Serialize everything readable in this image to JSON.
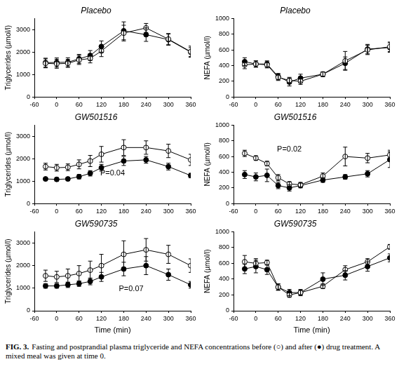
{
  "chart_data": [
    {
      "type": "line",
      "title": "Placebo",
      "ylabel": "Triglycerides (µmol/l)",
      "x": [
        -30,
        0,
        30,
        60,
        90,
        120,
        180,
        240,
        300,
        360
      ],
      "xlim": [
        -60,
        360
      ],
      "xticks": [
        -60,
        0,
        60,
        120,
        180,
        240,
        300,
        360
      ],
      "ylim": [
        0,
        3500
      ],
      "yticks": [
        0,
        1000,
        2000,
        3000
      ],
      "grid": false,
      "series": [
        {
          "name": "before",
          "color": "#000000",
          "marker": "circle_open",
          "values": [
            1500,
            1480,
            1500,
            1650,
            1720,
            2050,
            2850,
            3080,
            2580,
            2020
          ],
          "errors": [
            200,
            200,
            180,
            200,
            200,
            250,
            350,
            200,
            250,
            250
          ]
        },
        {
          "name": "after",
          "color": "#000000",
          "marker": "circle",
          "values": [
            1530,
            1540,
            1550,
            1700,
            1850,
            2250,
            2950,
            2780,
            2560,
            2000
          ],
          "errors": [
            200,
            200,
            200,
            200,
            220,
            250,
            400,
            300,
            250,
            200
          ]
        }
      ]
    },
    {
      "type": "line",
      "title": "Placebo",
      "ylabel": "NEFA (µmol/l)",
      "x": [
        -30,
        0,
        30,
        60,
        90,
        120,
        180,
        240,
        300,
        360
      ],
      "xlim": [
        -60,
        360
      ],
      "xticks": [
        -60,
        0,
        60,
        120,
        180,
        240,
        300,
        360
      ],
      "ylim": [
        0,
        1000
      ],
      "yticks": [
        0,
        200,
        400,
        600,
        800,
        1000
      ],
      "grid": false,
      "series": [
        {
          "name": "before",
          "color": "#000000",
          "marker": "circle_open",
          "values": [
            410,
            420,
            410,
            250,
            210,
            200,
            290,
            460,
            600,
            640
          ],
          "errors": [
            50,
            40,
            40,
            40,
            40,
            40,
            30,
            120,
            60,
            60
          ]
        },
        {
          "name": "after",
          "color": "#000000",
          "marker": "circle",
          "values": [
            450,
            420,
            420,
            260,
            190,
            240,
            290,
            430,
            610,
            630
          ],
          "errors": [
            50,
            40,
            40,
            40,
            50,
            50,
            30,
            80,
            60,
            60
          ]
        }
      ]
    },
    {
      "type": "line",
      "title": "GW501516",
      "ylabel": "Triglycerides (µmol/l)",
      "x": [
        -30,
        0,
        30,
        60,
        90,
        120,
        180,
        240,
        300,
        360
      ],
      "xlim": [
        -60,
        360
      ],
      "xticks": [
        -60,
        0,
        60,
        120,
        180,
        240,
        300,
        360
      ],
      "ylim": [
        0,
        3500
      ],
      "yticks": [
        0,
        1000,
        2000,
        3000
      ],
      "grid": false,
      "annotation": {
        "text": "P=0.04",
        "x": 150,
        "y": 1350
      },
      "series": [
        {
          "name": "before",
          "color": "#000000",
          "marker": "circle_open",
          "values": [
            1650,
            1600,
            1620,
            1750,
            1900,
            2200,
            2500,
            2500,
            2350,
            1950
          ],
          "errors": [
            150,
            150,
            150,
            200,
            250,
            350,
            350,
            300,
            300,
            250
          ]
        },
        {
          "name": "after",
          "color": "#000000",
          "marker": "circle",
          "values": [
            1100,
            1080,
            1100,
            1200,
            1350,
            1600,
            1900,
            1950,
            1650,
            1250
          ],
          "errors": [
            80,
            80,
            80,
            100,
            120,
            150,
            200,
            150,
            150,
            100
          ]
        }
      ]
    },
    {
      "type": "line",
      "title": "GW501516",
      "ylabel": "NEFA (µmol/l)",
      "x": [
        -30,
        0,
        30,
        60,
        90,
        120,
        180,
        240,
        300,
        360
      ],
      "xlim": [
        -60,
        360
      ],
      "xticks": [
        -60,
        0,
        60,
        120,
        180,
        240,
        300,
        360
      ],
      "ylim": [
        0,
        1000
      ],
      "yticks": [
        0,
        200,
        400,
        600,
        800,
        1000
      ],
      "grid": false,
      "annotation": {
        "text": "P=0.02",
        "x": 90,
        "y": 690
      },
      "series": [
        {
          "name": "before",
          "color": "#000000",
          "marker": "circle_open",
          "values": [
            640,
            580,
            510,
            330,
            250,
            240,
            350,
            600,
            580,
            620
          ],
          "errors": [
            40,
            30,
            30,
            40,
            30,
            30,
            40,
            120,
            60,
            60
          ]
        },
        {
          "name": "after",
          "color": "#000000",
          "marker": "circle",
          "values": [
            370,
            340,
            360,
            230,
            200,
            230,
            300,
            340,
            380,
            560
          ],
          "errors": [
            50,
            50,
            80,
            40,
            40,
            30,
            30,
            30,
            40,
            100
          ]
        }
      ]
    },
    {
      "type": "line",
      "title": "GW590735",
      "ylabel": "Triglycerides (µmol/l)",
      "xlabel": "Time (min)",
      "x": [
        -30,
        0,
        30,
        60,
        90,
        120,
        180,
        240,
        300,
        360
      ],
      "xlim": [
        -60,
        360
      ],
      "xticks": [
        -60,
        0,
        60,
        120,
        180,
        240,
        300,
        360
      ],
      "ylim": [
        0,
        3500
      ],
      "yticks": [
        0,
        1000,
        2000,
        3000
      ],
      "grid": false,
      "annotation": {
        "text": "P=0.07",
        "x": 200,
        "y": 950
      },
      "series": [
        {
          "name": "before",
          "color": "#000000",
          "marker": "circle_open",
          "values": [
            1550,
            1500,
            1550,
            1650,
            1800,
            2000,
            2500,
            2700,
            2500,
            2000
          ],
          "errors": [
            250,
            250,
            300,
            350,
            400,
            500,
            600,
            500,
            400,
            300
          ]
        },
        {
          "name": "after",
          "color": "#000000",
          "marker": "circle",
          "values": [
            1100,
            1100,
            1150,
            1200,
            1300,
            1500,
            1850,
            2000,
            1600,
            1150
          ],
          "errors": [
            100,
            100,
            120,
            120,
            150,
            200,
            300,
            400,
            250,
            150
          ]
        }
      ]
    },
    {
      "type": "line",
      "title": "GW590735",
      "ylabel": "NEFA (µmol/l)",
      "xlabel": "Time (min)",
      "x": [
        -30,
        0,
        30,
        60,
        90,
        120,
        180,
        240,
        300,
        360
      ],
      "xlim": [
        -60,
        360
      ],
      "xticks": [
        -60,
        0,
        60,
        120,
        180,
        240,
        300,
        360
      ],
      "ylim": [
        0,
        1000
      ],
      "yticks": [
        0,
        200,
        400,
        600,
        800,
        1000
      ],
      "grid": false,
      "series": [
        {
          "name": "before",
          "color": "#000000",
          "marker": "circle_open",
          "values": [
            620,
            600,
            610,
            300,
            200,
            230,
            310,
            520,
            620,
            810
          ],
          "errors": [
            80,
            60,
            30,
            40,
            30,
            30,
            30,
            50,
            40,
            30
          ]
        },
        {
          "name": "after",
          "color": "#000000",
          "marker": "circle",
          "values": [
            530,
            560,
            520,
            300,
            230,
            230,
            400,
            450,
            560,
            670
          ],
          "errors": [
            60,
            80,
            60,
            40,
            40,
            40,
            80,
            60,
            60,
            50
          ]
        }
      ]
    }
  ],
  "caption_label": "FIG. 3.",
  "caption": "Fasting and postprandial plasma triglyceride and NEFA concentrations before (○) and after (●) drug treatment. A mixed meal was given at time 0."
}
